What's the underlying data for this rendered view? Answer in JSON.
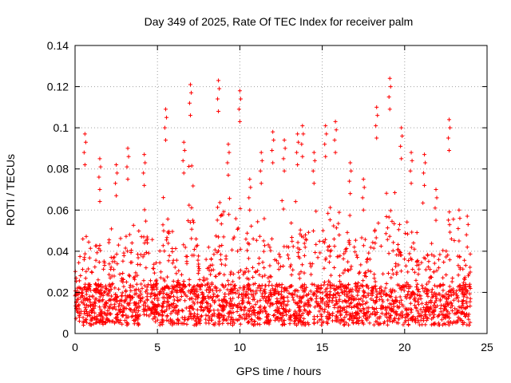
{
  "chart_data": {
    "type": "scatter",
    "title": "Day 349 of 2025, Rate Of TEC Index for receiver palm",
    "xlabel": "GPS time / hours",
    "ylabel": "ROTI / TECUs",
    "xlim": [
      0,
      25
    ],
    "ylim": [
      0,
      0.14
    ],
    "xticks": [
      0,
      5,
      10,
      15,
      20,
      25
    ],
    "xtick_labels": [
      "0",
      "5",
      "10",
      "15",
      "20",
      "25"
    ],
    "yticks": [
      0,
      0.02,
      0.04,
      0.06,
      0.08,
      0.1,
      0.12,
      0.14
    ],
    "ytick_labels": [
      "0",
      "0.02",
      "0.04",
      "0.06",
      "0.08",
      "0.1",
      "0.12",
      "0.14"
    ],
    "grid": true,
    "marker": "plus",
    "color": "#ff0000",
    "series": [
      {
        "name": "ROTI",
        "x_range": [
          0,
          24
        ],
        "note": "dense cloud of points, mostly 0.005-0.04, spikes to ~0.12",
        "peaks": [
          {
            "x": 0.6,
            "y": 0.097
          },
          {
            "x": 1.5,
            "y": 0.085
          },
          {
            "x": 2.5,
            "y": 0.082
          },
          {
            "x": 3.2,
            "y": 0.09
          },
          {
            "x": 4.2,
            "y": 0.087
          },
          {
            "x": 5.5,
            "y": 0.109
          },
          {
            "x": 6.6,
            "y": 0.093
          },
          {
            "x": 7.0,
            "y": 0.121
          },
          {
            "x": 8.7,
            "y": 0.123
          },
          {
            "x": 9.3,
            "y": 0.092
          },
          {
            "x": 10.0,
            "y": 0.118
          },
          {
            "x": 10.6,
            "y": 0.075
          },
          {
            "x": 11.3,
            "y": 0.088
          },
          {
            "x": 12.0,
            "y": 0.098
          },
          {
            "x": 12.7,
            "y": 0.094
          },
          {
            "x": 13.5,
            "y": 0.097
          },
          {
            "x": 13.8,
            "y": 0.101
          },
          {
            "x": 14.5,
            "y": 0.088
          },
          {
            "x": 15.2,
            "y": 0.101
          },
          {
            "x": 15.8,
            "y": 0.103
          },
          {
            "x": 16.7,
            "y": 0.083
          },
          {
            "x": 17.5,
            "y": 0.075
          },
          {
            "x": 18.3,
            "y": 0.11
          },
          {
            "x": 19.1,
            "y": 0.124
          },
          {
            "x": 19.8,
            "y": 0.1
          },
          {
            "x": 20.4,
            "y": 0.088
          },
          {
            "x": 21.2,
            "y": 0.087
          },
          {
            "x": 21.9,
            "y": 0.07
          },
          {
            "x": 22.7,
            "y": 0.104
          },
          {
            "x": 23.3,
            "y": 0.06
          },
          {
            "x": 23.8,
            "y": 0.057
          }
        ]
      }
    ]
  }
}
